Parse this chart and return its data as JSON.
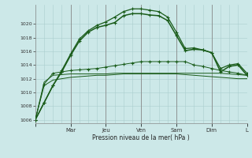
{
  "background_color": "#cce8e8",
  "grid_color": "#aacece",
  "line_color": "#1a5c1a",
  "xlabel": "Pression niveau de la mer( hPa )",
  "ylim": [
    1005.5,
    1022.8
  ],
  "yticks": [
    1006,
    1008,
    1010,
    1012,
    1014,
    1016,
    1018,
    1020
  ],
  "day_ticks": [
    0,
    4,
    8,
    12,
    16,
    20,
    24
  ],
  "day_labels": [
    "",
    "Mar",
    "Jeu",
    "Ven",
    "Sam",
    "Dim",
    "L"
  ],
  "n_points": 25,
  "series_flat1": [
    1006.0,
    1011.5,
    1012.5,
    1012.6,
    1012.7,
    1012.7,
    1012.7,
    1012.7,
    1012.7,
    1012.8,
    1012.8,
    1012.8,
    1012.8,
    1012.8,
    1012.8,
    1012.8,
    1012.8,
    1012.8,
    1012.8,
    1012.8,
    1012.8,
    1012.8,
    1012.7,
    1012.6,
    1012.5
  ],
  "series_flat2": [
    1006.0,
    1011.0,
    1011.8,
    1012.0,
    1012.2,
    1012.3,
    1012.4,
    1012.5,
    1012.5,
    1012.6,
    1012.7,
    1012.7,
    1012.7,
    1012.7,
    1012.7,
    1012.7,
    1012.7,
    1012.6,
    1012.5,
    1012.4,
    1012.3,
    1012.2,
    1012.1,
    1012.0,
    1012.0
  ],
  "series_mid": [
    1006.0,
    1011.2,
    1012.8,
    1013.0,
    1013.2,
    1013.3,
    1013.4,
    1013.5,
    1013.7,
    1013.9,
    1014.1,
    1014.3,
    1014.5,
    1014.5,
    1014.5,
    1014.5,
    1014.5,
    1014.5,
    1014.0,
    1013.8,
    1013.5,
    1013.2,
    1013.0,
    1012.8,
    1012.5
  ],
  "series_main": [
    1006.0,
    1008.5,
    1011.0,
    1013.0,
    1015.4,
    1017.5,
    1018.8,
    1019.5,
    1019.8,
    1020.2,
    1021.2,
    1021.5,
    1021.5,
    1021.3,
    1021.2,
    1020.5,
    1018.3,
    1016.1,
    1016.3,
    1016.2,
    1015.8,
    1013.0,
    1013.8,
    1014.0,
    1012.5
  ],
  "series_upper": [
    1006.0,
    1008.5,
    1011.0,
    1013.2,
    1015.6,
    1017.8,
    1019.0,
    1019.8,
    1020.3,
    1021.0,
    1021.8,
    1022.2,
    1022.2,
    1022.0,
    1021.8,
    1021.0,
    1018.8,
    1016.4,
    1016.5,
    1016.2,
    1015.8,
    1013.5,
    1014.0,
    1014.2,
    1012.8
  ]
}
